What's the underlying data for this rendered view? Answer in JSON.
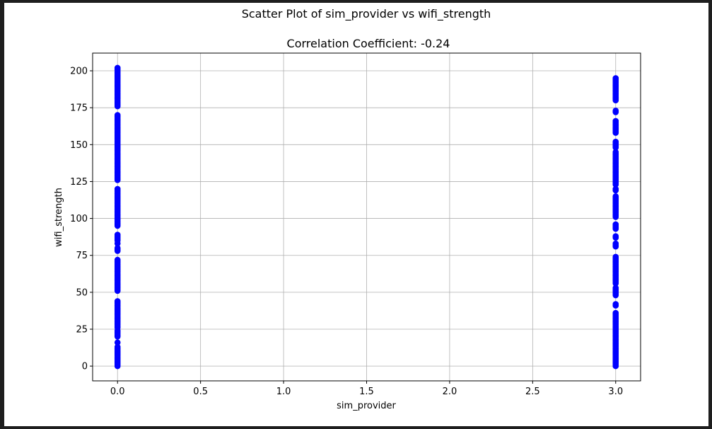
{
  "chart_data": {
    "type": "scatter",
    "suptitle": "Scatter Plot of sim_provider vs wifi_strength",
    "title": "Correlation Coefficient: -0.24",
    "xlabel": "sim_provider",
    "ylabel": "wifi_strength",
    "xlim": [
      -0.15,
      3.15
    ],
    "ylim": [
      -10,
      212
    ],
    "xticks": [
      0.0,
      0.5,
      1.0,
      1.5,
      2.0,
      2.5,
      3.0
    ],
    "xtick_labels": [
      "0.0",
      "0.5",
      "1.0",
      "1.5",
      "2.0",
      "2.5",
      "3.0"
    ],
    "yticks": [
      0,
      25,
      50,
      75,
      100,
      125,
      150,
      175,
      200
    ],
    "ytick_labels": [
      "0",
      "25",
      "50",
      "75",
      "100",
      "125",
      "150",
      "175",
      "200"
    ],
    "grid": true,
    "marker_color": "#0000ff",
    "series": [
      {
        "x_value": 0,
        "y": [
          0,
          1,
          2,
          3,
          4,
          5,
          6,
          7,
          8,
          9,
          10,
          11,
          12,
          13,
          16,
          20,
          21,
          22,
          23,
          24,
          26,
          27,
          28,
          29,
          30,
          31,
          32,
          33,
          34,
          35,
          36,
          37,
          38,
          39,
          40,
          41,
          42,
          43,
          44,
          51,
          52,
          53,
          54,
          55,
          56,
          57,
          58,
          59,
          60,
          61,
          62,
          63,
          64,
          65,
          66,
          67,
          68,
          69,
          70,
          71,
          72,
          78,
          79,
          80,
          83,
          85,
          86,
          87,
          88,
          89,
          95,
          96,
          97,
          98,
          99,
          100,
          101,
          102,
          103,
          104,
          105,
          106,
          107,
          108,
          109,
          110,
          111,
          112,
          113,
          114,
          115,
          116,
          117,
          118,
          119,
          120,
          126,
          127,
          128,
          129,
          130,
          131,
          132,
          133,
          134,
          135,
          136,
          137,
          138,
          139,
          140,
          141,
          142,
          143,
          144,
          145,
          146,
          147,
          148,
          149,
          150,
          151,
          152,
          153,
          154,
          155,
          156,
          157,
          158,
          159,
          160,
          161,
          162,
          163,
          164,
          165,
          166,
          167,
          168,
          169,
          170,
          176,
          177,
          178,
          179,
          180,
          181,
          182,
          183,
          184,
          185,
          186,
          187,
          188,
          189,
          190,
          191,
          192,
          193,
          194,
          195,
          196,
          197,
          198,
          199,
          200,
          201,
          202
        ]
      },
      {
        "x_value": 3,
        "y": [
          0,
          1,
          2,
          3,
          4,
          5,
          6,
          7,
          8,
          9,
          10,
          11,
          12,
          13,
          14,
          15,
          16,
          17,
          18,
          19,
          20,
          21,
          22,
          23,
          24,
          25,
          26,
          27,
          28,
          29,
          30,
          31,
          32,
          33,
          34,
          35,
          36,
          41,
          42,
          48,
          49,
          50,
          51,
          52,
          53,
          56,
          57,
          58,
          59,
          60,
          61,
          62,
          63,
          64,
          65,
          66,
          67,
          68,
          69,
          70,
          71,
          72,
          73,
          74,
          81,
          82,
          83,
          87,
          88,
          93,
          94,
          95,
          96,
          101,
          102,
          103,
          104,
          105,
          106,
          107,
          108,
          109,
          110,
          111,
          112,
          113,
          114,
          115,
          119,
          120,
          123,
          124,
          125,
          126,
          127,
          128,
          129,
          130,
          131,
          132,
          133,
          134,
          135,
          136,
          137,
          138,
          139,
          140,
          141,
          142,
          143,
          144,
          145,
          148,
          149,
          150,
          151,
          152,
          158,
          159,
          160,
          161,
          162,
          163,
          164,
          165,
          166,
          172,
          173,
          180,
          181,
          182,
          183,
          184,
          185,
          186,
          187,
          188,
          189,
          190,
          191,
          192,
          193,
          194,
          195
        ]
      }
    ]
  }
}
